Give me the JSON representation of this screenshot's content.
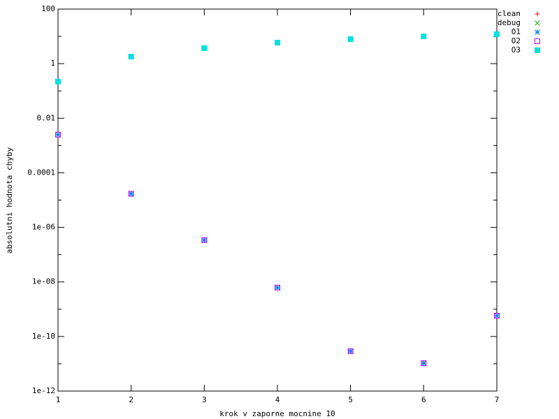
{
  "chart_data": {
    "type": "scatter",
    "xlabel": "krok v zaporne mocnine 10",
    "ylabel": "absolutni hodnota chyby",
    "x": [
      1,
      2,
      3,
      4,
      5,
      6,
      7
    ],
    "xlim": [
      1,
      7
    ],
    "xticks": [
      1,
      2,
      3,
      4,
      5,
      6,
      7
    ],
    "ylim": [
      1e-12,
      100
    ],
    "log_y": true,
    "yticks": [
      100,
      1,
      0.01,
      0.0001,
      {
        "value": 1e-06,
        "label": "1e-06"
      },
      {
        "value": 1e-08,
        "label": "1e-08"
      },
      {
        "value": 1e-10,
        "label": "1e-10"
      },
      {
        "value": 1e-12,
        "label": "1e-12"
      }
    ],
    "yminor_ticks": [
      10,
      0.1,
      0.001,
      1e-05,
      1e-07,
      1e-09,
      1e-11
    ],
    "legend": "outside-top-right",
    "series": [
      {
        "name": "clean",
        "color": "#ff0000",
        "marker": "plus",
        "values": [
          0.0025,
          1.7e-05,
          3.4e-07,
          6.2e-09,
          2.9e-11,
          1.05e-11,
          5.8e-10
        ]
      },
      {
        "name": "debug",
        "color": "#00c000",
        "marker": "cross",
        "values": [
          0.0025,
          1.7e-05,
          3.4e-07,
          6.2e-09,
          2.9e-11,
          1.05e-11,
          5.8e-10
        ]
      },
      {
        "name": "O1",
        "color": "#0080ff",
        "marker": "star",
        "values": [
          0.0025,
          1.7e-05,
          3.4e-07,
          6.2e-09,
          2.9e-11,
          1.05e-11,
          5.8e-10
        ]
      },
      {
        "name": "O2",
        "color": "#c000ff",
        "marker": "open-square",
        "values": [
          0.0025,
          1.7e-05,
          3.4e-07,
          6.2e-09,
          2.9e-11,
          1.05e-11,
          5.8e-10
        ]
      },
      {
        "name": "O3",
        "color": "#00e0e0",
        "marker": "filled-square",
        "values": [
          0.22,
          1.8,
          3.7,
          5.9,
          7.9,
          10,
          12
        ]
      }
    ]
  }
}
